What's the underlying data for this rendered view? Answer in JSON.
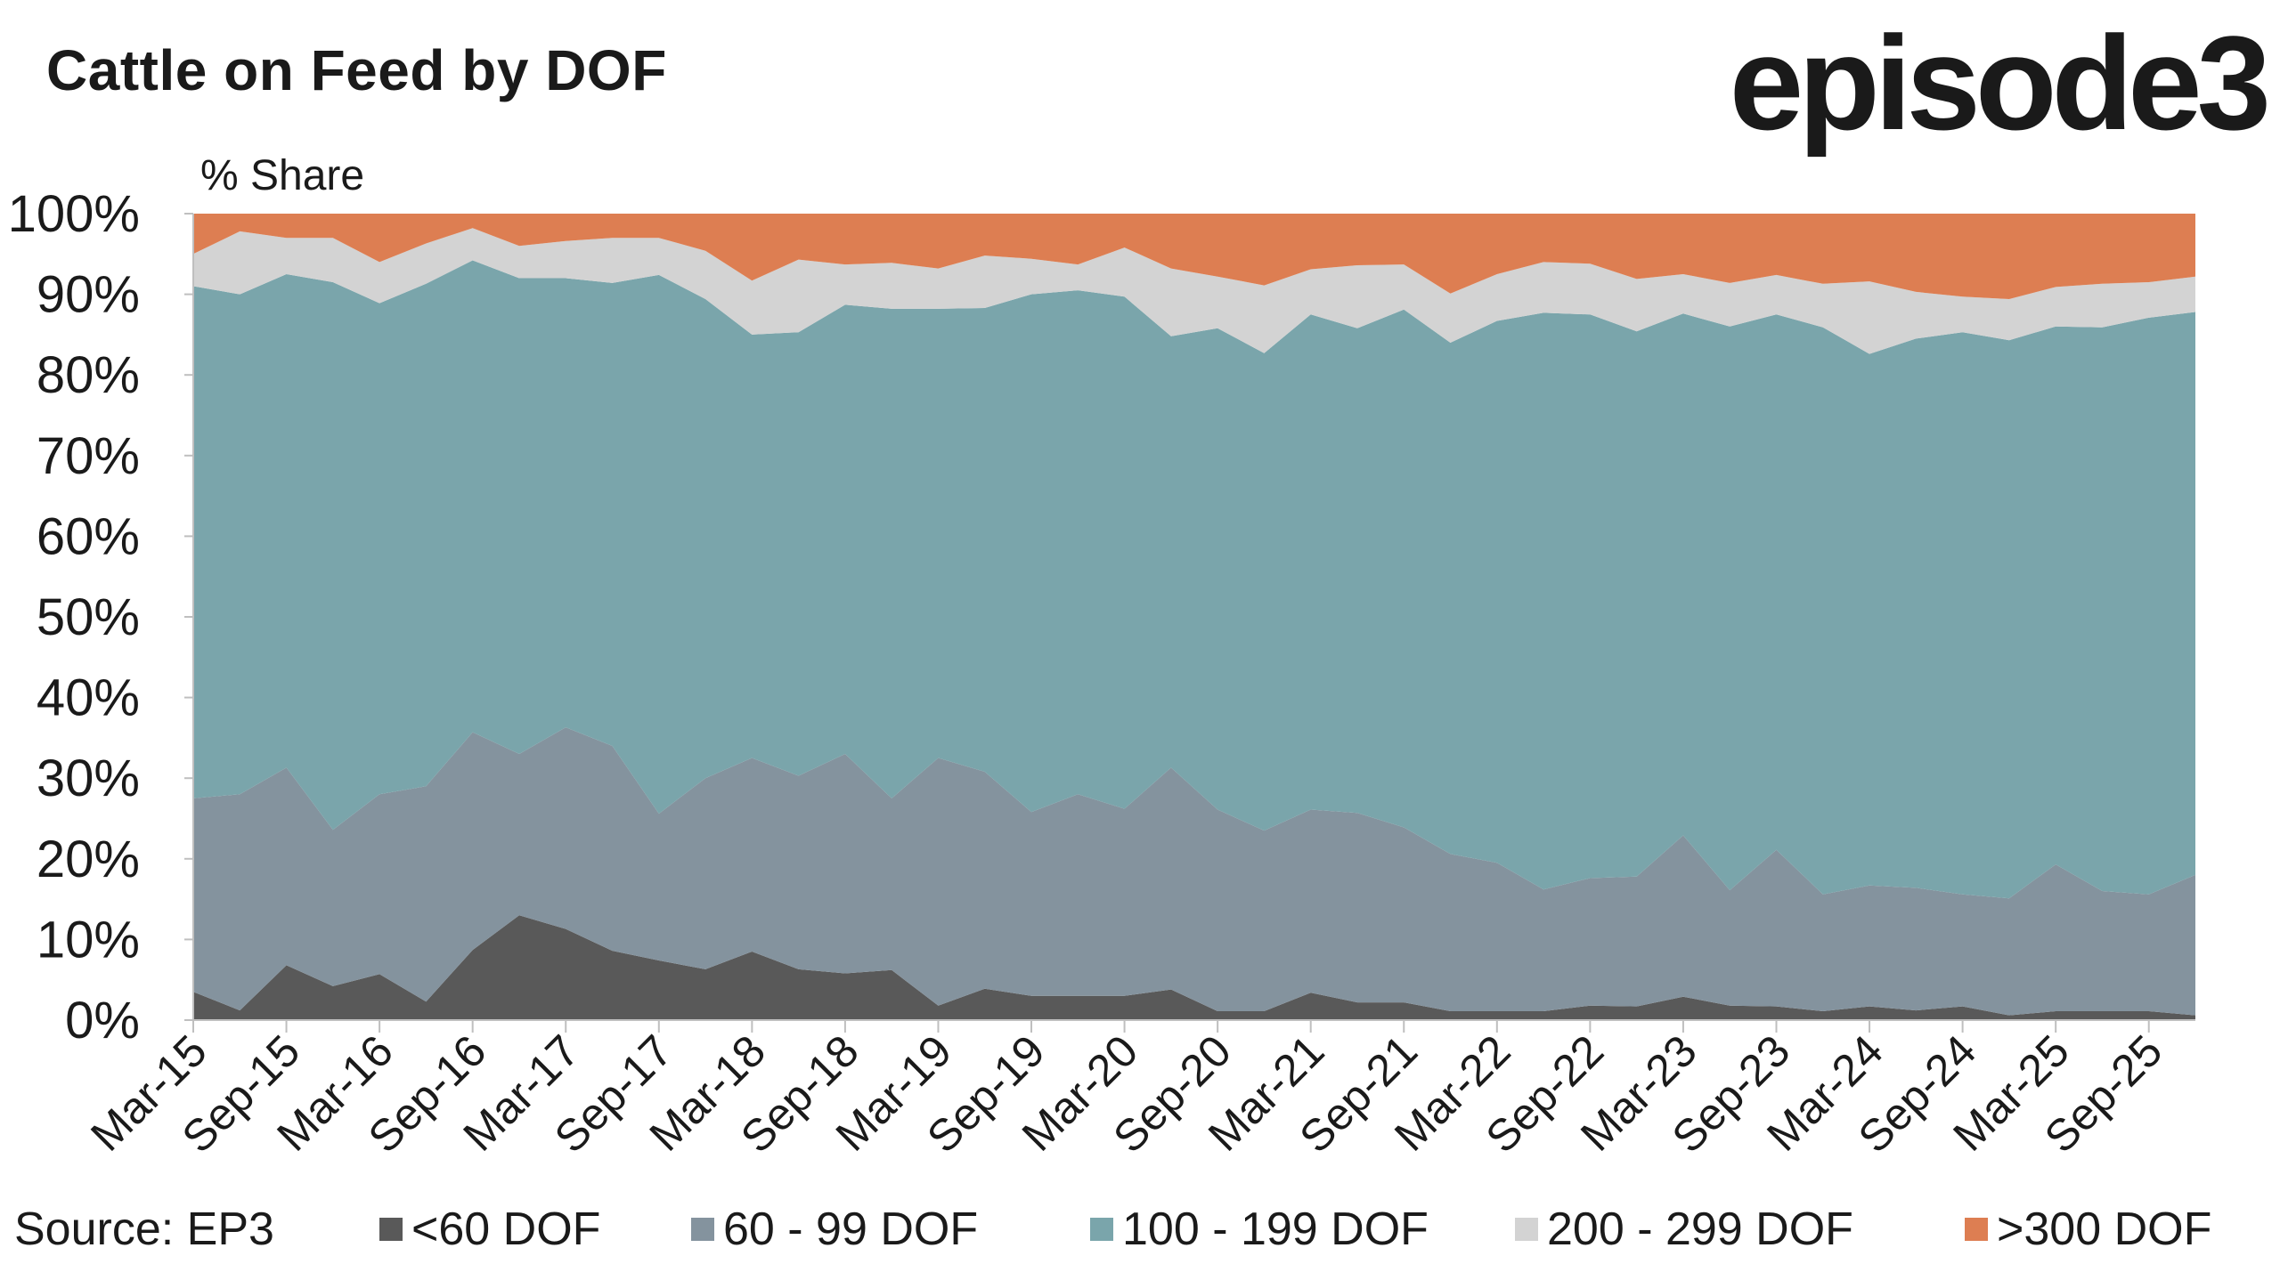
{
  "title": "Cattle on Feed by DOF",
  "logo": "episode3",
  "source": "Source: EP3",
  "chart_data": {
    "type": "area",
    "stacked": true,
    "ylabel": "% Share",
    "ylim": [
      0,
      100
    ],
    "yticks": [
      "0%",
      "10%",
      "20%",
      "30%",
      "40%",
      "50%",
      "60%",
      "70%",
      "80%",
      "90%",
      "100%"
    ],
    "tick_labels": [
      "Mar-15",
      "Sep-15",
      "Mar-16",
      "Sep-16",
      "Mar-17",
      "Sep-17",
      "Mar-18",
      "Sep-18",
      "Mar-19",
      "Sep-19",
      "Mar-20",
      "Sep-20",
      "Mar-21",
      "Sep-21",
      "Mar-22",
      "Sep-22",
      "Mar-23",
      "Sep-23",
      "Mar-24",
      "Sep-24",
      "Mar-25",
      "Sep-25"
    ],
    "x": [
      "Mar-15",
      "Jun-15",
      "Sep-15",
      "Dec-15",
      "Mar-16",
      "Jun-16",
      "Sep-16",
      "Dec-16",
      "Mar-17",
      "Jun-17",
      "Sep-17",
      "Dec-17",
      "Mar-18",
      "Jun-18",
      "Sep-18",
      "Dec-18",
      "Mar-19",
      "Jun-19",
      "Sep-19",
      "Dec-19",
      "Mar-20",
      "Jun-20",
      "Sep-20",
      "Dec-20",
      "Mar-21",
      "Jun-21",
      "Sep-21",
      "Dec-21",
      "Mar-22",
      "Jun-22",
      "Sep-22",
      "Dec-22",
      "Mar-23",
      "Jun-23",
      "Sep-23",
      "Dec-23",
      "Mar-24",
      "Jun-24",
      "Sep-24",
      "Dec-24",
      "Mar-25",
      "Jun-25",
      "Sep-25",
      "Dec-25"
    ],
    "series": [
      {
        "name": "<60 DOF",
        "color": "#595959",
        "values": [
          3.5,
          1.2,
          6.8,
          4.2,
          5.7,
          2.3,
          8.7,
          13,
          11.3,
          8.6,
          7.4,
          6.3,
          8.5,
          6.3,
          5.8,
          6.2,
          1.8,
          3.9,
          3,
          3,
          3,
          3.8,
          1.1,
          1.1,
          3.4,
          2.2,
          2.2,
          1.1,
          1.1,
          1.1,
          1.8,
          1.7,
          2.9,
          1.8,
          1.7,
          1.1,
          1.7,
          1.2,
          1.7,
          0.6,
          1.1,
          1.1,
          1.1,
          0.6
        ]
      },
      {
        "name": "60 - 99 DOF",
        "color": "#84939e",
        "values": [
          24,
          26.8,
          24.5,
          19.4,
          22.3,
          26.7,
          27,
          20,
          25,
          25.4,
          18.2,
          23.7,
          24,
          24,
          27.2,
          21.3,
          30.7,
          26.9,
          22.8,
          25,
          23.2,
          27.5,
          25,
          22.4,
          22.7,
          23.5,
          21.7,
          19.5,
          18.4,
          15.1,
          15.8,
          16.1,
          20,
          14.3,
          19.4,
          14.5,
          15,
          15.2,
          13.9,
          14.5,
          18.2,
          14.9,
          14.5,
          17.4
        ]
      },
      {
        "name": "100 - 199 DOF",
        "color": "#7aa5ab",
        "values": [
          63.5,
          62,
          61.2,
          67.9,
          60.9,
          62.3,
          58.5,
          59,
          55.7,
          57.4,
          66.8,
          59.4,
          52.5,
          55,
          55.7,
          60.7,
          55.7,
          57.5,
          64.2,
          62.5,
          63.5,
          53.5,
          59.7,
          59.2,
          61.4,
          60.1,
          64.2,
          63.4,
          67.2,
          71.5,
          69.9,
          67.6,
          64.7,
          69.9,
          66.4,
          70.3,
          65.9,
          68.1,
          69.7,
          69.2,
          66.7,
          69.9,
          71.5,
          69.8
        ]
      },
      {
        "name": "200 - 299 DOF",
        "color": "#d3d3d3",
        "values": [
          4,
          7.8,
          4.5,
          5.5,
          5.1,
          5,
          4,
          4,
          4.6,
          5.6,
          4.6,
          6,
          6.7,
          9,
          5,
          5.7,
          5,
          6.5,
          4.4,
          3.2,
          6.1,
          8.4,
          6.4,
          8.4,
          5.6,
          7.8,
          5.6,
          6.1,
          5.8,
          6.3,
          6.3,
          6.5,
          4.9,
          5.4,
          4.9,
          5.4,
          9,
          5.8,
          4.4,
          5.1,
          4.9,
          5.4,
          4.4,
          4.4
        ]
      },
      {
        "name": ">300 DOF",
        "color": "#dd7e52",
        "values": [
          5,
          2.2,
          3,
          3,
          6,
          3.7,
          1.8,
          4,
          3.4,
          3,
          3,
          4.6,
          8.3,
          5.7,
          6.3,
          6.1,
          6.8,
          5.2,
          5.6,
          6.3,
          4.2,
          6.8,
          7.8,
          8.9,
          6.9,
          6.4,
          6.3,
          9.9,
          7.5,
          6,
          6.2,
          8.1,
          7.5,
          8.6,
          7.6,
          8.7,
          8.4,
          9.7,
          10.3,
          10.6,
          9.1,
          8.7,
          8.5,
          7.8
        ]
      }
    ]
  }
}
